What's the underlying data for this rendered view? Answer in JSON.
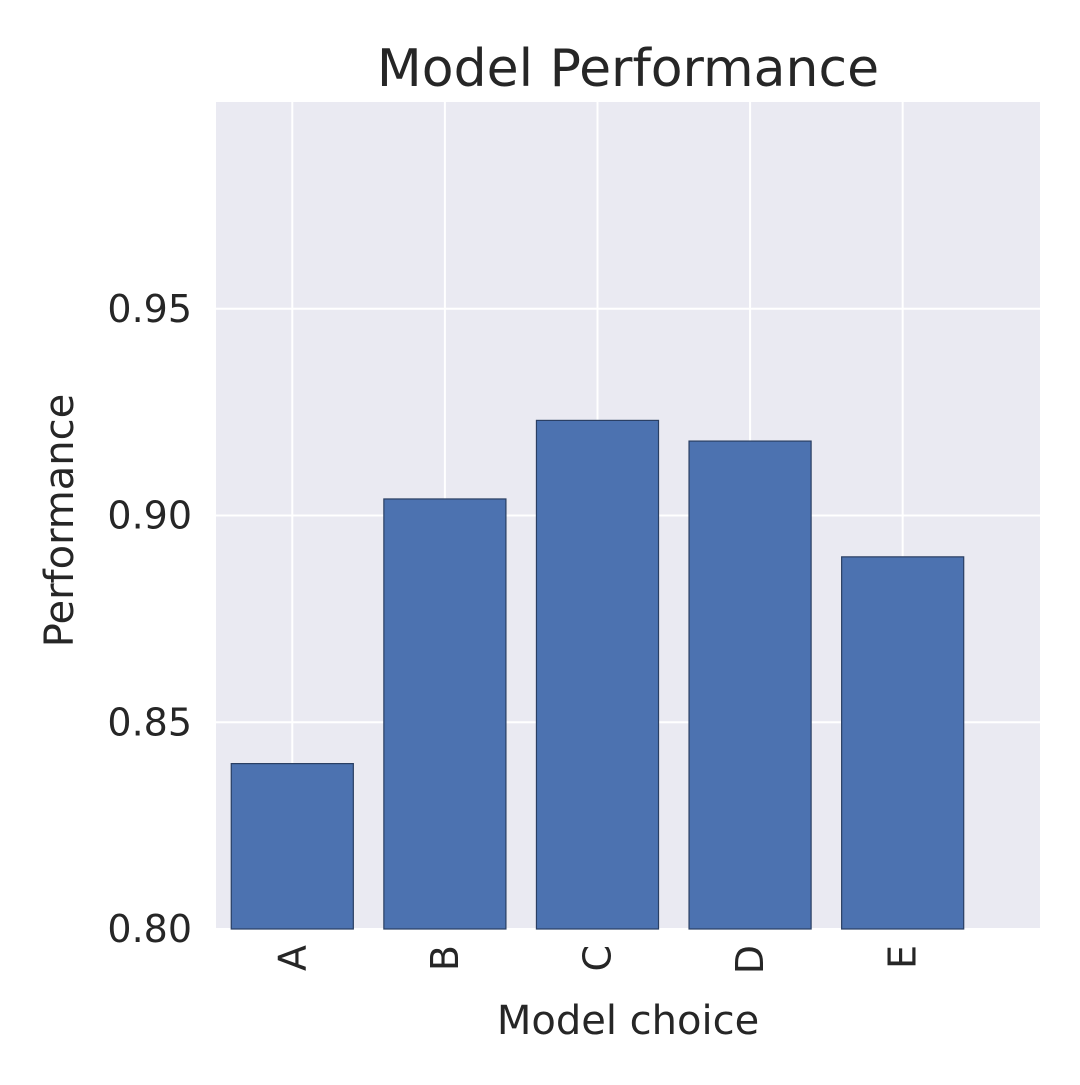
{
  "chart_data": {
    "type": "bar",
    "title": "Model Performance",
    "xlabel": "Model choice",
    "ylabel": "Performance",
    "categories": [
      "A",
      "B",
      "C",
      "D",
      "E"
    ],
    "values": [
      0.84,
      0.904,
      0.923,
      0.918,
      0.89
    ],
    "ylim": [
      0.8,
      1.0
    ],
    "yticks": [
      "0.80",
      "0.85",
      "0.90",
      "0.95"
    ],
    "ytick_values": [
      0.8,
      0.85,
      0.9,
      0.95
    ],
    "grid": true,
    "legend": "none",
    "colors": {
      "bar": "#4c72b0",
      "bar_edge": "#2a3f63",
      "plot_background": "#eaeaf2",
      "grid": "#ffffff",
      "text": "#262626"
    }
  }
}
